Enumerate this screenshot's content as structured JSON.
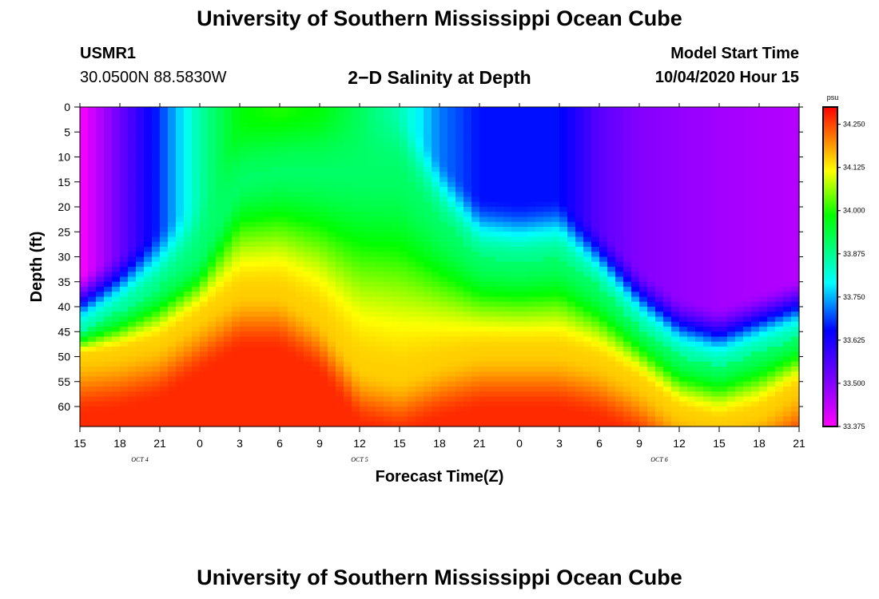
{
  "header": {
    "title": "University of Southern Mississippi Ocean Cube",
    "station_id": "USMR1",
    "coordinates": "30.0500N 88.5830W",
    "subtitle": "2−D Salinity at Depth",
    "start_label": "Model Start Time",
    "start_value": "10/04/2020 Hour 15"
  },
  "footer": {
    "title": "University of Southern Mississippi Ocean Cube"
  },
  "chart_data": {
    "type": "heatmap",
    "title": "2−D Salinity at Depth",
    "xlabel": "Forecast Time(Z)",
    "ylabel": "Depth (ft)",
    "x_tick_labels": [
      "15",
      "18",
      "21",
      "0",
      "3",
      "6",
      "9",
      "12",
      "15",
      "18",
      "21",
      "0",
      "3",
      "6",
      "9",
      "12",
      "15",
      "18",
      "21"
    ],
    "day_labels": [
      {
        "label": "OCT 4",
        "tick_index": 1.5
      },
      {
        "label": "OCT 5",
        "tick_index": 7
      },
      {
        "label": "OCT 6",
        "tick_index": 14.5
      }
    ],
    "y_tick_labels": [
      "0",
      "5",
      "10",
      "15",
      "20",
      "25",
      "30",
      "35",
      "40",
      "45",
      "50",
      "55",
      "60"
    ],
    "xlim_hours": [
      0,
      54
    ],
    "ylim_ft": [
      0,
      64
    ],
    "colorbar": {
      "unit": "psu",
      "range": [
        33.375,
        34.3
      ],
      "tick_labels": [
        "34.250",
        "34.125",
        "34.000",
        "33.875",
        "33.750",
        "33.625",
        "33.500",
        "33.375"
      ],
      "tick_values": [
        34.25,
        34.125,
        34.0,
        33.875,
        33.75,
        33.625,
        33.5,
        33.375
      ]
    },
    "surface_salinity_profile": {
      "hours": [
        0,
        6,
        9,
        12,
        15,
        18,
        24,
        27,
        30,
        36,
        39,
        42,
        48,
        54
      ],
      "salinity": [
        33.375,
        33.68,
        33.86,
        33.98,
        34.0,
        33.98,
        33.85,
        33.72,
        33.66,
        33.66,
        33.55,
        33.5,
        33.47,
        33.45
      ]
    },
    "upper_interface_depth_ft": {
      "hours": [
        0,
        3,
        6,
        9,
        12,
        15,
        18,
        24,
        27,
        30,
        33,
        36,
        39,
        42,
        45,
        48,
        54
      ],
      "depth": [
        45,
        41,
        36,
        30,
        14,
        12,
        12,
        12,
        22,
        30,
        31,
        30,
        36,
        44,
        50,
        52,
        46
      ]
    },
    "lower_interface_depth_ft": {
      "hours": [
        0,
        3,
        6,
        9,
        12,
        15,
        18,
        21,
        24,
        27,
        30,
        33,
        36,
        39,
        42,
        45,
        48,
        51,
        54
      ],
      "depth": [
        50,
        49,
        47,
        42,
        37,
        37,
        42,
        52,
        54,
        51,
        49,
        49,
        49,
        51,
        55,
        61,
        63,
        61,
        56
      ]
    },
    "deep_salinity": 34.27
  }
}
